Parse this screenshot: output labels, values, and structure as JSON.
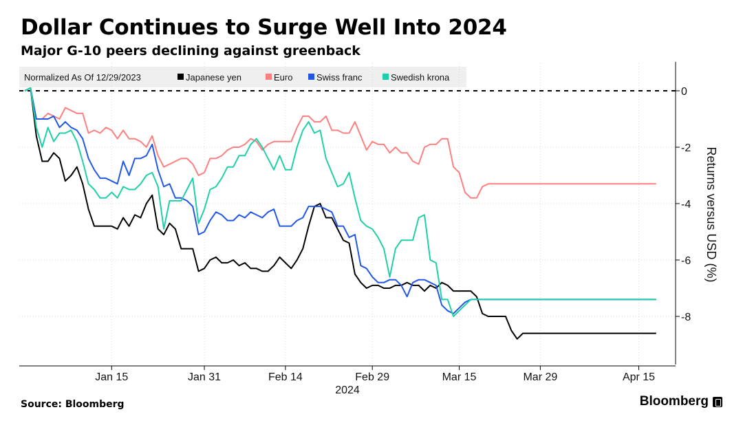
{
  "header": {
    "title": "Dollar Continues to Surge Well Into 2024",
    "subtitle": "Major G-10 peers declining against greenback"
  },
  "footer": {
    "source": "Source: Bloomberg",
    "brand": "Bloomberg"
  },
  "chart_data": {
    "type": "line",
    "title": "Dollar Continues to Surge Well Into 2024",
    "subtitle": "Major G-10 peers declining against greenback",
    "legend_title": "Normalized As Of 12/29/2023",
    "legend_position": "top-left",
    "xlabel": "2024",
    "ylabel": "Returns versus USD (%)",
    "ylim": [
      -9.3,
      1
    ],
    "yticks": [
      0,
      -2,
      -4,
      -6,
      -8
    ],
    "ytick_labels": [
      "0",
      "-2",
      "-4",
      "-6",
      "-8"
    ],
    "x_range": [
      0,
      109
    ],
    "xticks": [
      {
        "day": 15,
        "label": "Jan 15"
      },
      {
        "day": 31,
        "label": "Jan 31"
      },
      {
        "day": 45,
        "label": "Feb 14"
      },
      {
        "day": 60,
        "label": "Feb 29"
      },
      {
        "day": 75,
        "label": "Mar 15"
      },
      {
        "day": 89,
        "label": "Mar 29"
      },
      {
        "day": 106,
        "label": "Apr 15"
      }
    ],
    "reference_line": 0,
    "x_days": [
      0,
      1,
      2,
      3,
      4,
      5,
      6,
      7,
      8,
      9,
      10,
      11,
      12,
      13,
      14,
      15,
      16,
      17,
      18,
      19,
      20,
      21,
      22,
      23,
      24,
      25,
      26,
      27,
      28,
      29,
      30,
      31,
      32,
      33,
      34,
      35,
      36,
      37,
      38,
      39,
      40,
      41,
      42,
      43,
      44,
      45,
      46,
      47,
      48,
      49,
      50,
      51,
      52,
      53,
      54,
      55,
      56,
      57,
      58,
      59,
      60,
      61,
      62,
      63,
      64,
      65,
      66,
      67,
      68,
      69,
      70,
      71,
      72,
      73,
      74,
      75,
      76,
      77,
      78,
      79,
      80,
      81,
      82,
      83,
      84,
      85,
      86,
      87,
      88,
      89,
      90,
      91,
      92,
      93,
      94,
      95,
      96,
      97,
      98,
      99,
      100,
      101,
      102,
      103,
      104,
      105,
      106,
      107,
      108,
      109
    ],
    "series": [
      {
        "name": "Japanese yen",
        "color": "#000000",
        "values": [
          0,
          0.1,
          -1.6,
          -2.5,
          -2.5,
          -2.2,
          -2.4,
          -3.2,
          -3.0,
          -2.7,
          -3.3,
          -4.2,
          -4.8,
          -4.8,
          -4.8,
          -4.8,
          -4.9,
          -4.5,
          -4.8,
          -4.4,
          -4.5,
          -4.0,
          -3.7,
          -4.9,
          -5.1,
          -4.7,
          -4.9,
          -5.6,
          -5.6,
          -5.6,
          -6.4,
          -6.3,
          -6.0,
          -5.9,
          -6.1,
          -6.1,
          -6.0,
          -6.2,
          -6.1,
          -6.3,
          -6.3,
          -6.4,
          -6.4,
          -6.2,
          -5.9,
          -6.1,
          -6.3,
          -6.0,
          -5.6,
          -4.8,
          -4.1,
          -4.0,
          -4.5,
          -4.5,
          -4.9,
          -5.3,
          -5.4,
          -6.5,
          -6.8,
          -7.0,
          -6.9,
          -6.9,
          -7.0,
          -7.0,
          -6.9,
          -6.9,
          -6.8,
          -6.9,
          -6.9,
          -7.1,
          -6.9,
          -7.0,
          -6.8,
          -6.9,
          -7.1,
          -7.1,
          -7.1,
          -7.1,
          -7.3,
          -7.9,
          -8.0,
          -8.0,
          -8.0,
          -8.0,
          -8.5,
          -8.8,
          -8.6,
          -8.6,
          -8.6,
          -8.6,
          -8.6,
          -8.6,
          -8.6,
          -8.6,
          -8.6,
          -8.6,
          -8.6,
          -8.6,
          -8.6,
          -8.6,
          -8.6,
          -8.6,
          -8.6,
          -8.6,
          -8.6,
          -8.6,
          -8.6,
          -8.6,
          -8.6,
          -8.6
        ]
      },
      {
        "name": "Euro",
        "color": "#ff7f7f",
        "values": [
          0,
          0.1,
          -1.0,
          -1.0,
          -0.8,
          -0.9,
          -1.0,
          -0.6,
          -0.7,
          -0.8,
          -0.8,
          -1.5,
          -1.4,
          -1.5,
          -1.3,
          -1.4,
          -1.7,
          -1.4,
          -1.7,
          -1.7,
          -1.8,
          -2.0,
          -1.6,
          -2.3,
          -2.7,
          -2.6,
          -2.5,
          -2.4,
          -2.4,
          -2.6,
          -3.0,
          -2.9,
          -2.4,
          -2.4,
          -2.3,
          -2.1,
          -2.0,
          -2.0,
          -1.9,
          -1.7,
          -1.8,
          -2.1,
          -1.9,
          -1.8,
          -1.8,
          -1.8,
          -1.8,
          -1.3,
          -0.9,
          -0.9,
          -1.1,
          -1.1,
          -0.9,
          -1.4,
          -1.4,
          -1.5,
          -1.5,
          -1.1,
          -1.6,
          -2.1,
          -1.8,
          -1.9,
          -1.9,
          -2.2,
          -2.0,
          -2.2,
          -2.2,
          -2.5,
          -2.6,
          -2.0,
          -1.9,
          -1.9,
          -1.7,
          -1.7,
          -2.7,
          -2.9,
          -3.6,
          -3.8,
          -3.8,
          -3.4,
          -3.3,
          -3.3,
          -3.3,
          -3.3,
          -3.3,
          -3.3,
          -3.3,
          -3.3,
          -3.3,
          -3.3,
          -3.3,
          -3.3,
          -3.3,
          -3.3,
          -3.3,
          -3.3,
          -3.3,
          -3.3,
          -3.3,
          -3.3,
          -3.3,
          -3.3,
          -3.3,
          -3.3,
          -3.3,
          -3.3,
          -3.3,
          -3.3,
          -3.3,
          -3.3
        ]
      },
      {
        "name": "Swiss franc",
        "color": "#2156e6",
        "values": [
          0,
          0.1,
          -1.0,
          -1.0,
          -1.0,
          -0.9,
          -1.3,
          -1.1,
          -1.3,
          -1.4,
          -1.7,
          -2.4,
          -2.8,
          -3.1,
          -3.1,
          -3.2,
          -3.3,
          -2.5,
          -3.0,
          -2.4,
          -2.4,
          -2.3,
          -1.9,
          -2.8,
          -3.4,
          -3.3,
          -3.8,
          -3.8,
          -3.9,
          -4.1,
          -5.1,
          -5.0,
          -4.6,
          -4.3,
          -4.4,
          -4.6,
          -4.6,
          -4.4,
          -4.5,
          -4.3,
          -4.4,
          -4.5,
          -4.3,
          -4.2,
          -4.8,
          -4.8,
          -4.8,
          -4.6,
          -4.5,
          -4.1,
          -4.1,
          -4.1,
          -4.2,
          -4.3,
          -4.8,
          -4.8,
          -5.2,
          -5.1,
          -6.2,
          -6.3,
          -6.6,
          -6.8,
          -6.8,
          -6.7,
          -6.7,
          -6.9,
          -7.3,
          -6.8,
          -6.7,
          -6.7,
          -6.8,
          -6.9,
          -7.6,
          -7.8,
          -7.9,
          -7.7,
          -7.5,
          -7.4,
          -7.4,
          -7.4,
          -7.4,
          -7.4,
          -7.4,
          -7.4,
          -7.4,
          -7.4,
          -7.4,
          -7.4,
          -7.4,
          -7.4,
          -7.4,
          -7.4,
          -7.4,
          -7.4,
          -7.4,
          -7.4,
          -7.4,
          -7.4,
          -7.4,
          -7.4,
          -7.4,
          -7.4,
          -7.4,
          -7.4,
          -7.4,
          -7.4,
          -7.4,
          -7.4,
          -7.4,
          -7.4
        ]
      },
      {
        "name": "Swedish krona",
        "color": "#1fcfa8",
        "values": [
          0,
          0.1,
          -1.3,
          -2.0,
          -1.3,
          -1.8,
          -1.5,
          -1.5,
          -1.4,
          -1.8,
          -2.5,
          -3.3,
          -3.5,
          -3.8,
          -3.8,
          -3.6,
          -3.8,
          -3.4,
          -3.5,
          -3.5,
          -3.3,
          -3.0,
          -2.9,
          -3.4,
          -4.9,
          -3.9,
          -3.9,
          -3.9,
          -3.5,
          -3.1,
          -4.7,
          -4.2,
          -3.5,
          -3.4,
          -3.1,
          -2.7,
          -2.7,
          -2.3,
          -2.3,
          -1.9,
          -1.7,
          -2.0,
          -2.4,
          -2.8,
          -2.3,
          -2.8,
          -2.8,
          -2.0,
          -1.4,
          -1.1,
          -1.5,
          -1.4,
          -2.4,
          -2.9,
          -3.4,
          -3.3,
          -2.9,
          -3.8,
          -4.6,
          -4.8,
          -4.9,
          -5.2,
          -5.6,
          -6.6,
          -5.6,
          -5.3,
          -5.3,
          -5.3,
          -4.5,
          -4.4,
          -6.0,
          -6.1,
          -7.4,
          -7.4,
          -8.0,
          -7.8,
          -7.6,
          -7.4,
          -7.4,
          -7.4,
          -7.4,
          -7.4,
          -7.4,
          -7.4,
          -7.4,
          -7.4,
          -7.4,
          -7.4,
          -7.4,
          -7.4,
          -7.4,
          -7.4,
          -7.4,
          -7.4,
          -7.4,
          -7.4,
          -7.4,
          -7.4,
          -7.4,
          -7.4,
          -7.4,
          -7.4,
          -7.4,
          -7.4,
          -7.4,
          -7.4,
          -7.4,
          -7.4,
          -7.4,
          -7.4
        ]
      }
    ]
  }
}
